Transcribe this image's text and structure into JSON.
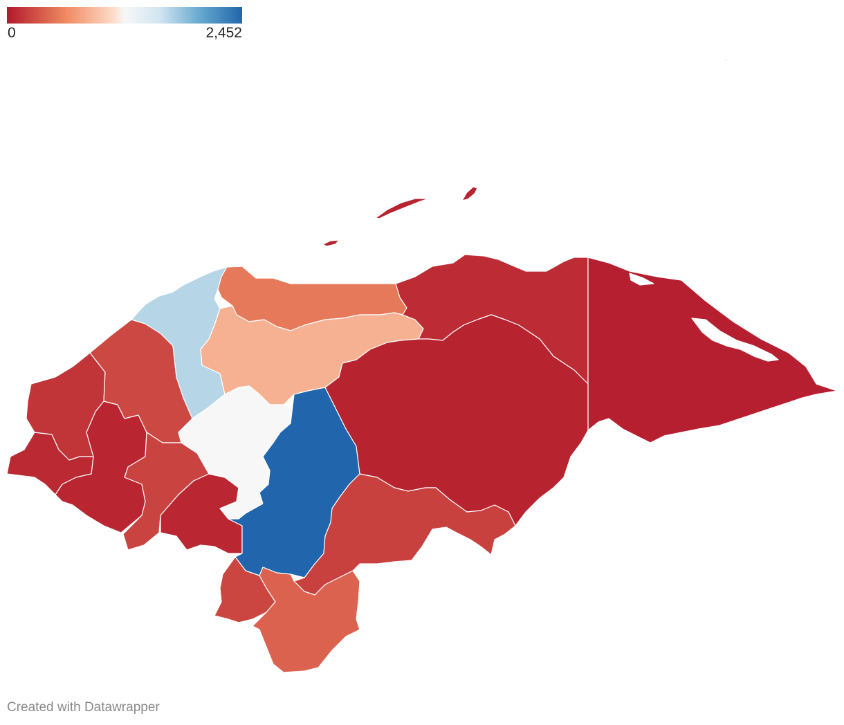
{
  "legend": {
    "min_label": "0",
    "max_label": "2,452",
    "min_value": 0,
    "max_value": 2452,
    "colors": [
      "#b2182b",
      "#ef8a62",
      "#fddbc7",
      "#f7f7f7",
      "#d1e5f0",
      "#67a9cf",
      "#2166ac"
    ]
  },
  "regions": [
    {
      "id": "copan",
      "value": 150
    },
    {
      "id": "ocotepeque",
      "value": 90
    },
    {
      "id": "lempira",
      "value": 70
    },
    {
      "id": "santa-barbara",
      "value": 260
    },
    {
      "id": "intibuca",
      "value": 230
    },
    {
      "id": "la-paz",
      "value": 80
    },
    {
      "id": "cortes",
      "value": 1700
    },
    {
      "id": "yoro",
      "value": 850
    },
    {
      "id": "atlantida",
      "value": 520
    },
    {
      "id": "comayagua",
      "value": 1230
    },
    {
      "id": "francisco-morazan",
      "value": 2452
    },
    {
      "id": "colon",
      "value": 110
    },
    {
      "id": "olancho",
      "value": 60
    },
    {
      "id": "gracias-a-dios",
      "value": 40
    },
    {
      "id": "el-paraiso",
      "value": 220
    },
    {
      "id": "valle",
      "value": 250
    },
    {
      "id": "choluteca",
      "value": 400
    },
    {
      "id": "islas-de-la-bahia",
      "value": 60
    }
  ],
  "credit": "Created with Datawrapper"
}
